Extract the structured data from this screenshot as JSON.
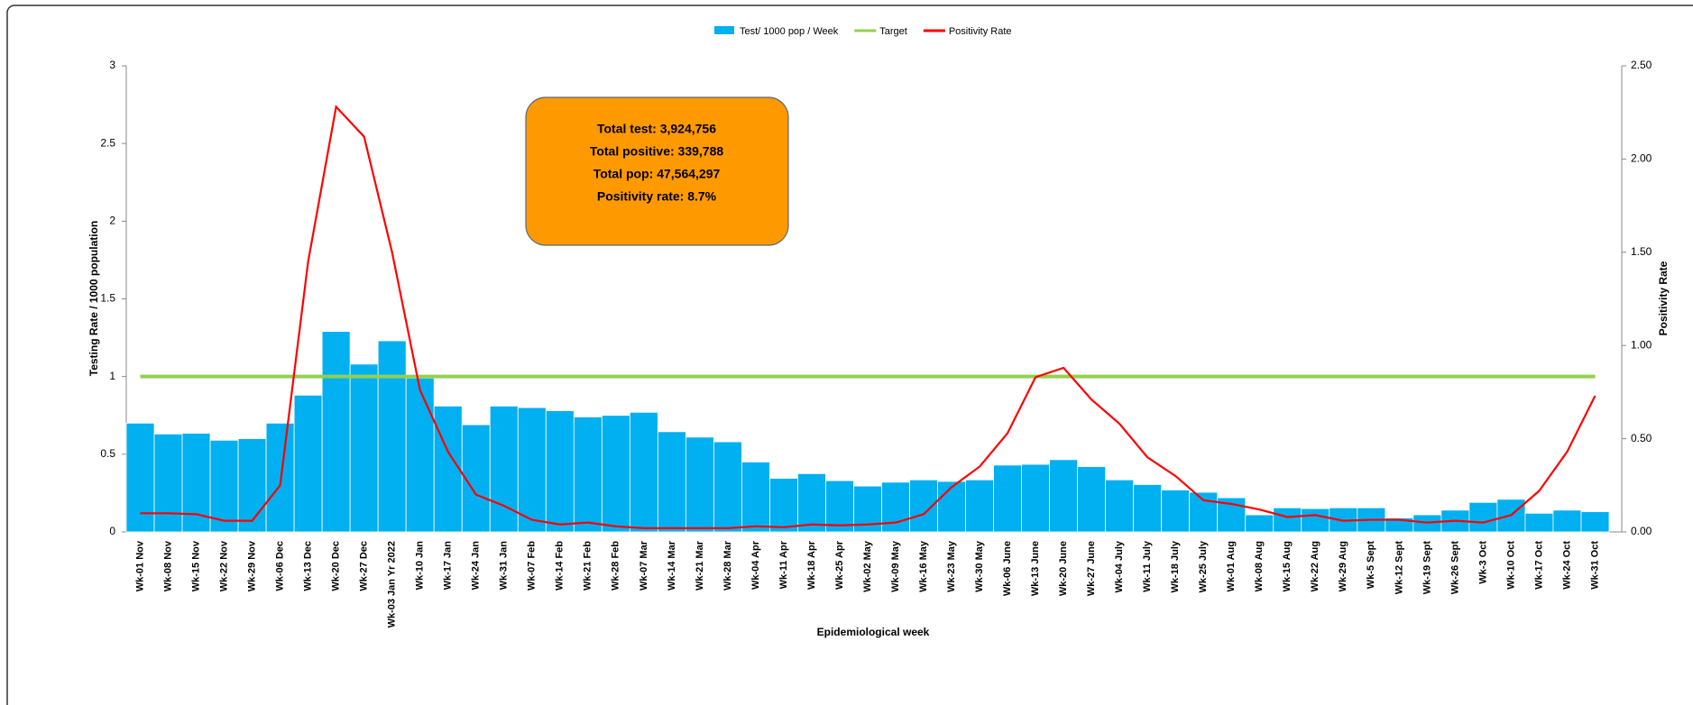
{
  "chart_data": {
    "type": "bar_line",
    "x_label": "Epidemiological week",
    "y_label": "Testing Rate / 1000 population",
    "y2_label": "Positivity Rate",
    "annotation": [
      "Total test: 3,924,756",
      "Total positive:  339,788",
      "Total pop: 47,564,297",
      "Positivity rate: 8.7%"
    ],
    "categories": [
      "Wk-01 Nov",
      "Wk-08 Nov",
      "Wk-15 Nov",
      "Wk-22 Nov",
      "Wk-29 Nov",
      "Wk-06 Dec",
      "Wk-13 Dec",
      "Wk-20 Dec",
      "Wk-27 Dec",
      "Wk-03 Jan Yr 2022",
      "Wk-10 Jan",
      "Wk-17 Jan",
      "Wk-24 Jan",
      "Wk-31 Jan",
      "Wk-07 Feb",
      "Wk-14 Feb",
      "Wk-21 Feb",
      "Wk-28 Feb",
      "Wk-07 Mar",
      "Wk-14 Mar",
      "Wk-21 Mar",
      "Wk-28 Mar",
      "Wk-04 Apr",
      "Wk-11 Apr",
      "Wk-18 Apr",
      "Wk-25 Apr",
      "Wk-02 May",
      "Wk-09 May",
      "Wk-16 May",
      "Wk-23 May",
      "Wk-30 May",
      "Wk-06 June",
      "Wk-13 June",
      "Wk-20 June",
      "Wk-27 June",
      "Wk-04 July",
      "Wk-11 July",
      "Wk-18 July",
      "Wk-25 July",
      "Wk-01 Aug",
      "Wk-08 Aug",
      "Wk-15 Aug",
      "Wk-22 Aug",
      "Wk-29 Aug",
      "Wk-5 Sept",
      "Wk-12 Sept",
      "Wk-19 Sept",
      "Wk-26 Sept",
      "Wk-3 Oct",
      "Wk-10 Oct",
      "Wk-17 Oct",
      "Wk-24 Oct",
      "Wk-31 Oct"
    ],
    "series": [
      {
        "name": "Test/ 1000 pop / Week",
        "kind": "bar",
        "color": "#00b0f0",
        "values": [
          0.7,
          0.63,
          0.635,
          0.59,
          0.6,
          0.7,
          0.88,
          1.29,
          1.08,
          1.23,
          0.99,
          0.81,
          0.69,
          0.81,
          0.8,
          0.78,
          0.74,
          0.75,
          0.77,
          0.645,
          0.61,
          0.58,
          0.45,
          0.345,
          0.375,
          0.33,
          0.295,
          0.32,
          0.335,
          0.325,
          0.335,
          0.43,
          0.435,
          0.465,
          0.42,
          0.335,
          0.305,
          0.27,
          0.255,
          0.22,
          0.11,
          0.155,
          0.15,
          0.155,
          0.155,
          0.09,
          0.11,
          0.14,
          0.19,
          0.21,
          0.12,
          0.14,
          0.13
        ]
      },
      {
        "name": "Target",
        "kind": "line",
        "color": "#92d050",
        "values": [
          1,
          1,
          1,
          1,
          1,
          1,
          1,
          1,
          1,
          1,
          1,
          1,
          1,
          1,
          1,
          1,
          1,
          1,
          1,
          1,
          1,
          1,
          1,
          1,
          1,
          1,
          1,
          1,
          1,
          1,
          1,
          1,
          1,
          1,
          1,
          1,
          1,
          1,
          1,
          1,
          1,
          1,
          1,
          1,
          1,
          1,
          1,
          1,
          1,
          1,
          1,
          1,
          1
        ]
      },
      {
        "name": "Positivity Rate",
        "kind": "line",
        "axis": "y2",
        "color": "#ff0000",
        "values": [
          0.1,
          0.1,
          0.095,
          0.06,
          0.06,
          0.25,
          1.45,
          2.28,
          2.12,
          1.5,
          0.76,
          0.43,
          0.2,
          0.14,
          0.065,
          0.04,
          0.05,
          0.03,
          0.02,
          0.02,
          0.02,
          0.02,
          0.03,
          0.025,
          0.04,
          0.035,
          0.04,
          0.05,
          0.095,
          0.24,
          0.35,
          0.53,
          0.83,
          0.88,
          0.71,
          0.58,
          0.4,
          0.3,
          0.17,
          0.15,
          0.12,
          0.08,
          0.09,
          0.06,
          0.065,
          0.065,
          0.05,
          0.06,
          0.05,
          0.09,
          0.22,
          0.43,
          0.73
        ]
      }
    ],
    "ylim": [
      0,
      3
    ],
    "yticks": [
      0,
      0.5,
      1,
      1.5,
      2,
      2.5,
      3
    ],
    "y2lim": [
      0,
      2.5
    ],
    "y2ticks": [
      {
        "value": 0,
        "label": "0.00"
      },
      {
        "value": 0.5,
        "label": "0.50"
      },
      {
        "value": 1,
        "label": "1.00"
      },
      {
        "value": 1.5,
        "label": "1.50"
      },
      {
        "value": 2,
        "label": "2.00"
      },
      {
        "value": 2.5,
        "label": "2.50"
      }
    ],
    "legend": "top"
  }
}
